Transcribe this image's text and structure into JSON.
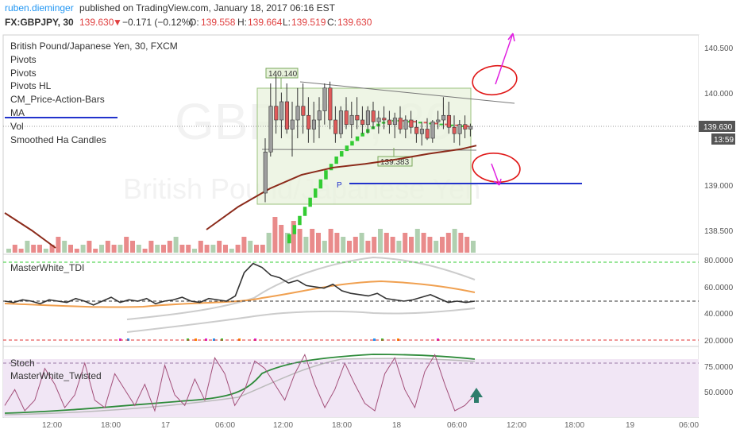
{
  "header": {
    "author": "ruben.dieminger",
    "published": "published on TradingView.com, January 18, 2017 06:16 EST",
    "symbol": "FX:GBPJPY, 30",
    "last": "139.630",
    "change": "−0.171 (−0.12%)",
    "o_label": "O:",
    "o_value": "139.558",
    "h_label": "H:",
    "h_value": "139.664",
    "l_label": "L:",
    "l_value": "139.519",
    "c_label": "C:",
    "c_value": "139.630"
  },
  "indicators": [
    "British Pound/Japanese Yen, 30, FXCM",
    "Pivots",
    "Pivots",
    "Pivots HL",
    "CM_Price-Action-Bars",
    "MA",
    "Vol",
    "Smoothed Ha Candles"
  ],
  "watermark": {
    "line1": "GBPJPY, 30",
    "line2": "British Pound/Japanese Yen"
  },
  "price_axis": {
    "ticks": [
      "140.500",
      "140.000",
      "139.000",
      "138.500"
    ],
    "current": "139.630",
    "countdown": "13:59"
  },
  "annotations": {
    "high_label": "140.140",
    "low_label": "139.383",
    "pivot_label": "P"
  },
  "tdi_panel": {
    "name": "MasterWhite_TDI",
    "ticks": [
      "80.0000",
      "60.0000",
      "40.0000",
      "20.0000"
    ]
  },
  "stoch_panel": {
    "names": [
      "Stoch",
      "MasterWhite_Twisted"
    ],
    "ticks": [
      "75.0000",
      "50.0000"
    ]
  },
  "time_axis": [
    "12:00",
    "18:00",
    "17",
    "06:00",
    "12:00",
    "18:00",
    "18",
    "06:00",
    "12:00",
    "18:00",
    "19",
    "06:00"
  ],
  "colors": {
    "up": "#8fbc8f",
    "down": "#e05a5a",
    "ha_green": "#33cc33",
    "ma": "#8b2a1a",
    "box": "#7aa85c",
    "pivot": "#2233cc",
    "magenta": "#e020e0",
    "red_circle": "#e01818"
  },
  "chart_data": {
    "type": "candlestick",
    "symbol": "GBPJPY",
    "interval": "30",
    "ylim": [
      138.2,
      140.75
    ],
    "tdi_ylim": [
      15,
      85
    ],
    "stoch_ylim": [
      30,
      90
    ],
    "levels": {
      "range_high": 140.14,
      "range_low": 139.383,
      "pivot": 139.0,
      "tdi_upper": 78,
      "tdi_mid": 50,
      "tdi_lower": 22,
      "stoch_upper": 80
    },
    "candles": [
      [
        138.9,
        139.5,
        138.8,
        139.35
      ],
      [
        139.35,
        140.1,
        139.3,
        139.85
      ],
      [
        139.85,
        140.2,
        139.55,
        139.7
      ],
      [
        139.7,
        140.0,
        139.5,
        139.9
      ],
      [
        139.9,
        140.1,
        139.55,
        139.6
      ],
      [
        139.6,
        139.9,
        139.3,
        139.7
      ],
      [
        139.7,
        140.05,
        139.5,
        139.85
      ],
      [
        139.85,
        140.1,
        139.55,
        139.75
      ],
      [
        139.75,
        139.95,
        139.45,
        139.6
      ],
      [
        139.6,
        139.9,
        139.45,
        139.7
      ],
      [
        139.7,
        139.95,
        139.5,
        139.8
      ],
      [
        139.8,
        140.1,
        139.65,
        140.05
      ],
      [
        140.05,
        140.12,
        139.6,
        139.7
      ],
      [
        139.7,
        139.85,
        139.45,
        139.55
      ],
      [
        139.55,
        139.85,
        139.5,
        139.8
      ],
      [
        139.8,
        139.95,
        139.6,
        139.65
      ],
      [
        139.65,
        139.9,
        139.5,
        139.75
      ],
      [
        139.75,
        139.95,
        139.6,
        139.7
      ],
      [
        139.7,
        139.85,
        139.55,
        139.65
      ],
      [
        139.65,
        139.85,
        139.55,
        139.8
      ],
      [
        139.8,
        139.9,
        139.6,
        139.68
      ],
      [
        139.68,
        139.8,
        139.55,
        139.72
      ],
      [
        139.72,
        139.85,
        139.6,
        139.7
      ],
      [
        139.7,
        139.8,
        139.55,
        139.65
      ],
      [
        139.65,
        139.78,
        139.5,
        139.72
      ],
      [
        139.72,
        139.85,
        139.55,
        139.6
      ],
      [
        139.6,
        139.75,
        139.5,
        139.7
      ],
      [
        139.7,
        139.8,
        139.55,
        139.62
      ],
      [
        139.62,
        139.7,
        139.45,
        139.55
      ],
      [
        139.55,
        139.68,
        139.42,
        139.6
      ],
      [
        139.6,
        139.72,
        139.48,
        139.5
      ],
      [
        139.5,
        139.7,
        139.45,
        139.68
      ],
      [
        139.68,
        139.8,
        139.6,
        139.7
      ],
      [
        139.7,
        139.95,
        139.6,
        139.75
      ],
      [
        139.75,
        139.9,
        139.55,
        139.62
      ],
      [
        139.62,
        139.75,
        139.45,
        139.55
      ],
      [
        139.55,
        139.7,
        139.42,
        139.65
      ],
      [
        139.65,
        139.75,
        139.5,
        139.6
      ],
      [
        139.6,
        139.66,
        139.52,
        139.63
      ]
    ],
    "ha_candles": [
      138.45,
      138.55,
      138.65,
      138.75,
      138.85,
      138.95,
      139.05,
      139.15,
      139.22,
      139.3,
      139.36,
      139.42,
      139.47,
      139.52,
      139.56,
      139.6,
      139.63,
      139.66,
      139.68,
      139.69,
      139.7,
      139.7,
      139.69,
      139.69,
      139.68,
      139.68,
      139.67,
      139.67,
      139.66,
      139.66,
      139.65,
      139.65,
      139.64,
      139.64,
      139.63
    ],
    "ma": [
      [
        260,
        138.5
      ],
      [
        300,
        138.75
      ],
      [
        340,
        138.95
      ],
      [
        380,
        139.1
      ],
      [
        420,
        139.18
      ],
      [
        460,
        139.22
      ],
      [
        500,
        139.27
      ],
      [
        540,
        139.33
      ],
      [
        580,
        139.38
      ],
      [
        600,
        139.42
      ]
    ],
    "volume": [
      1,
      2,
      1,
      3,
      2,
      2,
      1,
      2,
      4,
      3,
      2,
      1,
      2,
      3,
      1,
      2,
      3,
      2,
      2,
      4,
      3,
      2,
      1,
      3,
      2,
      2,
      3,
      4,
      2,
      2,
      1,
      3,
      2,
      2,
      3,
      2,
      1,
      2,
      4,
      3,
      2,
      2,
      5,
      9,
      7,
      5,
      8,
      6,
      4,
      6,
      5,
      3,
      6,
      5,
      4,
      3,
      4,
      5,
      3,
      4,
      6,
      5,
      4,
      3,
      5,
      4,
      6,
      5,
      4,
      3,
      4,
      5,
      6,
      5,
      4,
      3
    ],
    "tdi": [
      50,
      49,
      51,
      50,
      48,
      51,
      50,
      49,
      52,
      50,
      47,
      50,
      53,
      49,
      51,
      50,
      52,
      48,
      50,
      51,
      53,
      50,
      49,
      52,
      51,
      50,
      54,
      72,
      79,
      76,
      70,
      68,
      64,
      66,
      62,
      61,
      60,
      63,
      58,
      56,
      55,
      54,
      56,
      52,
      51,
      50,
      51,
      53,
      55,
      52,
      49,
      50,
      49,
      50
    ],
    "stoch": [
      40,
      55,
      35,
      45,
      75,
      60,
      38,
      50,
      80,
      45,
      38,
      70,
      55,
      40,
      60,
      35,
      78,
      50,
      40,
      65,
      45,
      85,
      70,
      40,
      55,
      82,
      75,
      60,
      45,
      70,
      88,
      60,
      38,
      55,
      80,
      60,
      42,
      35,
      70,
      85,
      55,
      38,
      72,
      88,
      60,
      35,
      40,
      50
    ]
  }
}
